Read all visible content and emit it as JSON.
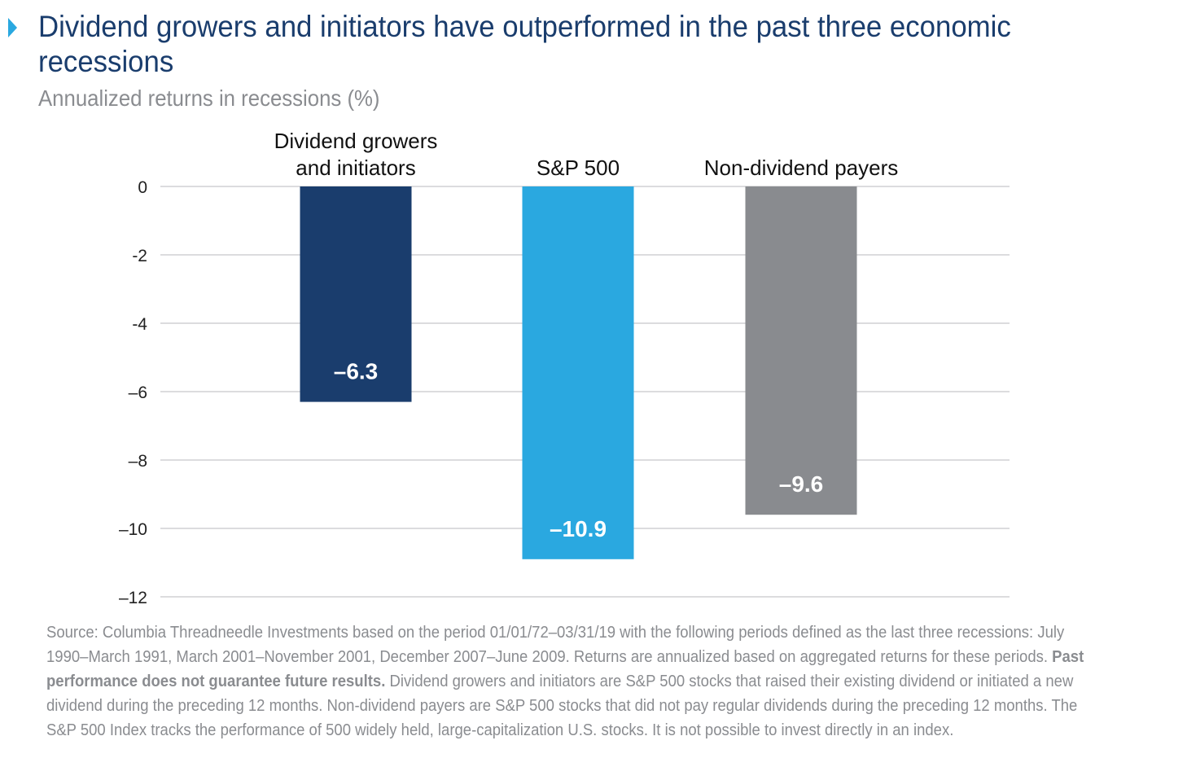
{
  "header": {
    "title": "Dividend growers and initiators have outperformed in the past three economic recessions",
    "subtitle": "Annualized returns in recessions (%)"
  },
  "colors": {
    "title": "#1a3d6d",
    "accent_marker": "#2aa8e0",
    "muted_text": "#8a8c90",
    "gridline": "#d0d1d3"
  },
  "chart_data": {
    "type": "bar",
    "categories": [
      "Dividend growers and initiators",
      "S&P 500",
      "Non-dividend payers"
    ],
    "category_label_lines": [
      [
        "Dividend growers",
        "and initiators"
      ],
      [
        "S&P 500"
      ],
      [
        "Non-dividend payers"
      ]
    ],
    "values": [
      -6.3,
      -10.9,
      -9.6
    ],
    "data_labels": [
      "–6.3",
      "–10.9",
      "–9.6"
    ],
    "bar_colors": [
      "#1a3d6d",
      "#2aa8e0",
      "#898b8f"
    ],
    "ylim": [
      -12,
      0
    ],
    "yticks": [
      0,
      -2,
      -4,
      -6,
      -8,
      -10,
      -12
    ],
    "ytick_labels": [
      "0",
      "-2",
      "-4",
      "–6",
      "–8",
      "–10",
      "–12"
    ],
    "grid": true,
    "legend": "none",
    "xlabel": "",
    "ylabel": ""
  },
  "footnote": {
    "part1": "Source: Columbia Threadneedle Investments based on the period 01/01/72–03/31/19 with the following periods defined as the last three recessions: July 1990–March 1991, March 2001–November 2001, December 2007–June 2009. Returns are annualized based on aggregated returns for these periods. ",
    "bold": "Past performance does not guarantee future results.",
    "part2": " Dividend growers and initiators are S&P 500 stocks that raised their existing dividend or initiated a new dividend during the preceding 12 months. Non-dividend payers are S&P 500 stocks that did not pay regular dividends during the preceding 12 months. The S&P 500 Index tracks the performance of 500 widely held, large-capitalization U.S. stocks. It is not possible to invest directly in an index."
  }
}
